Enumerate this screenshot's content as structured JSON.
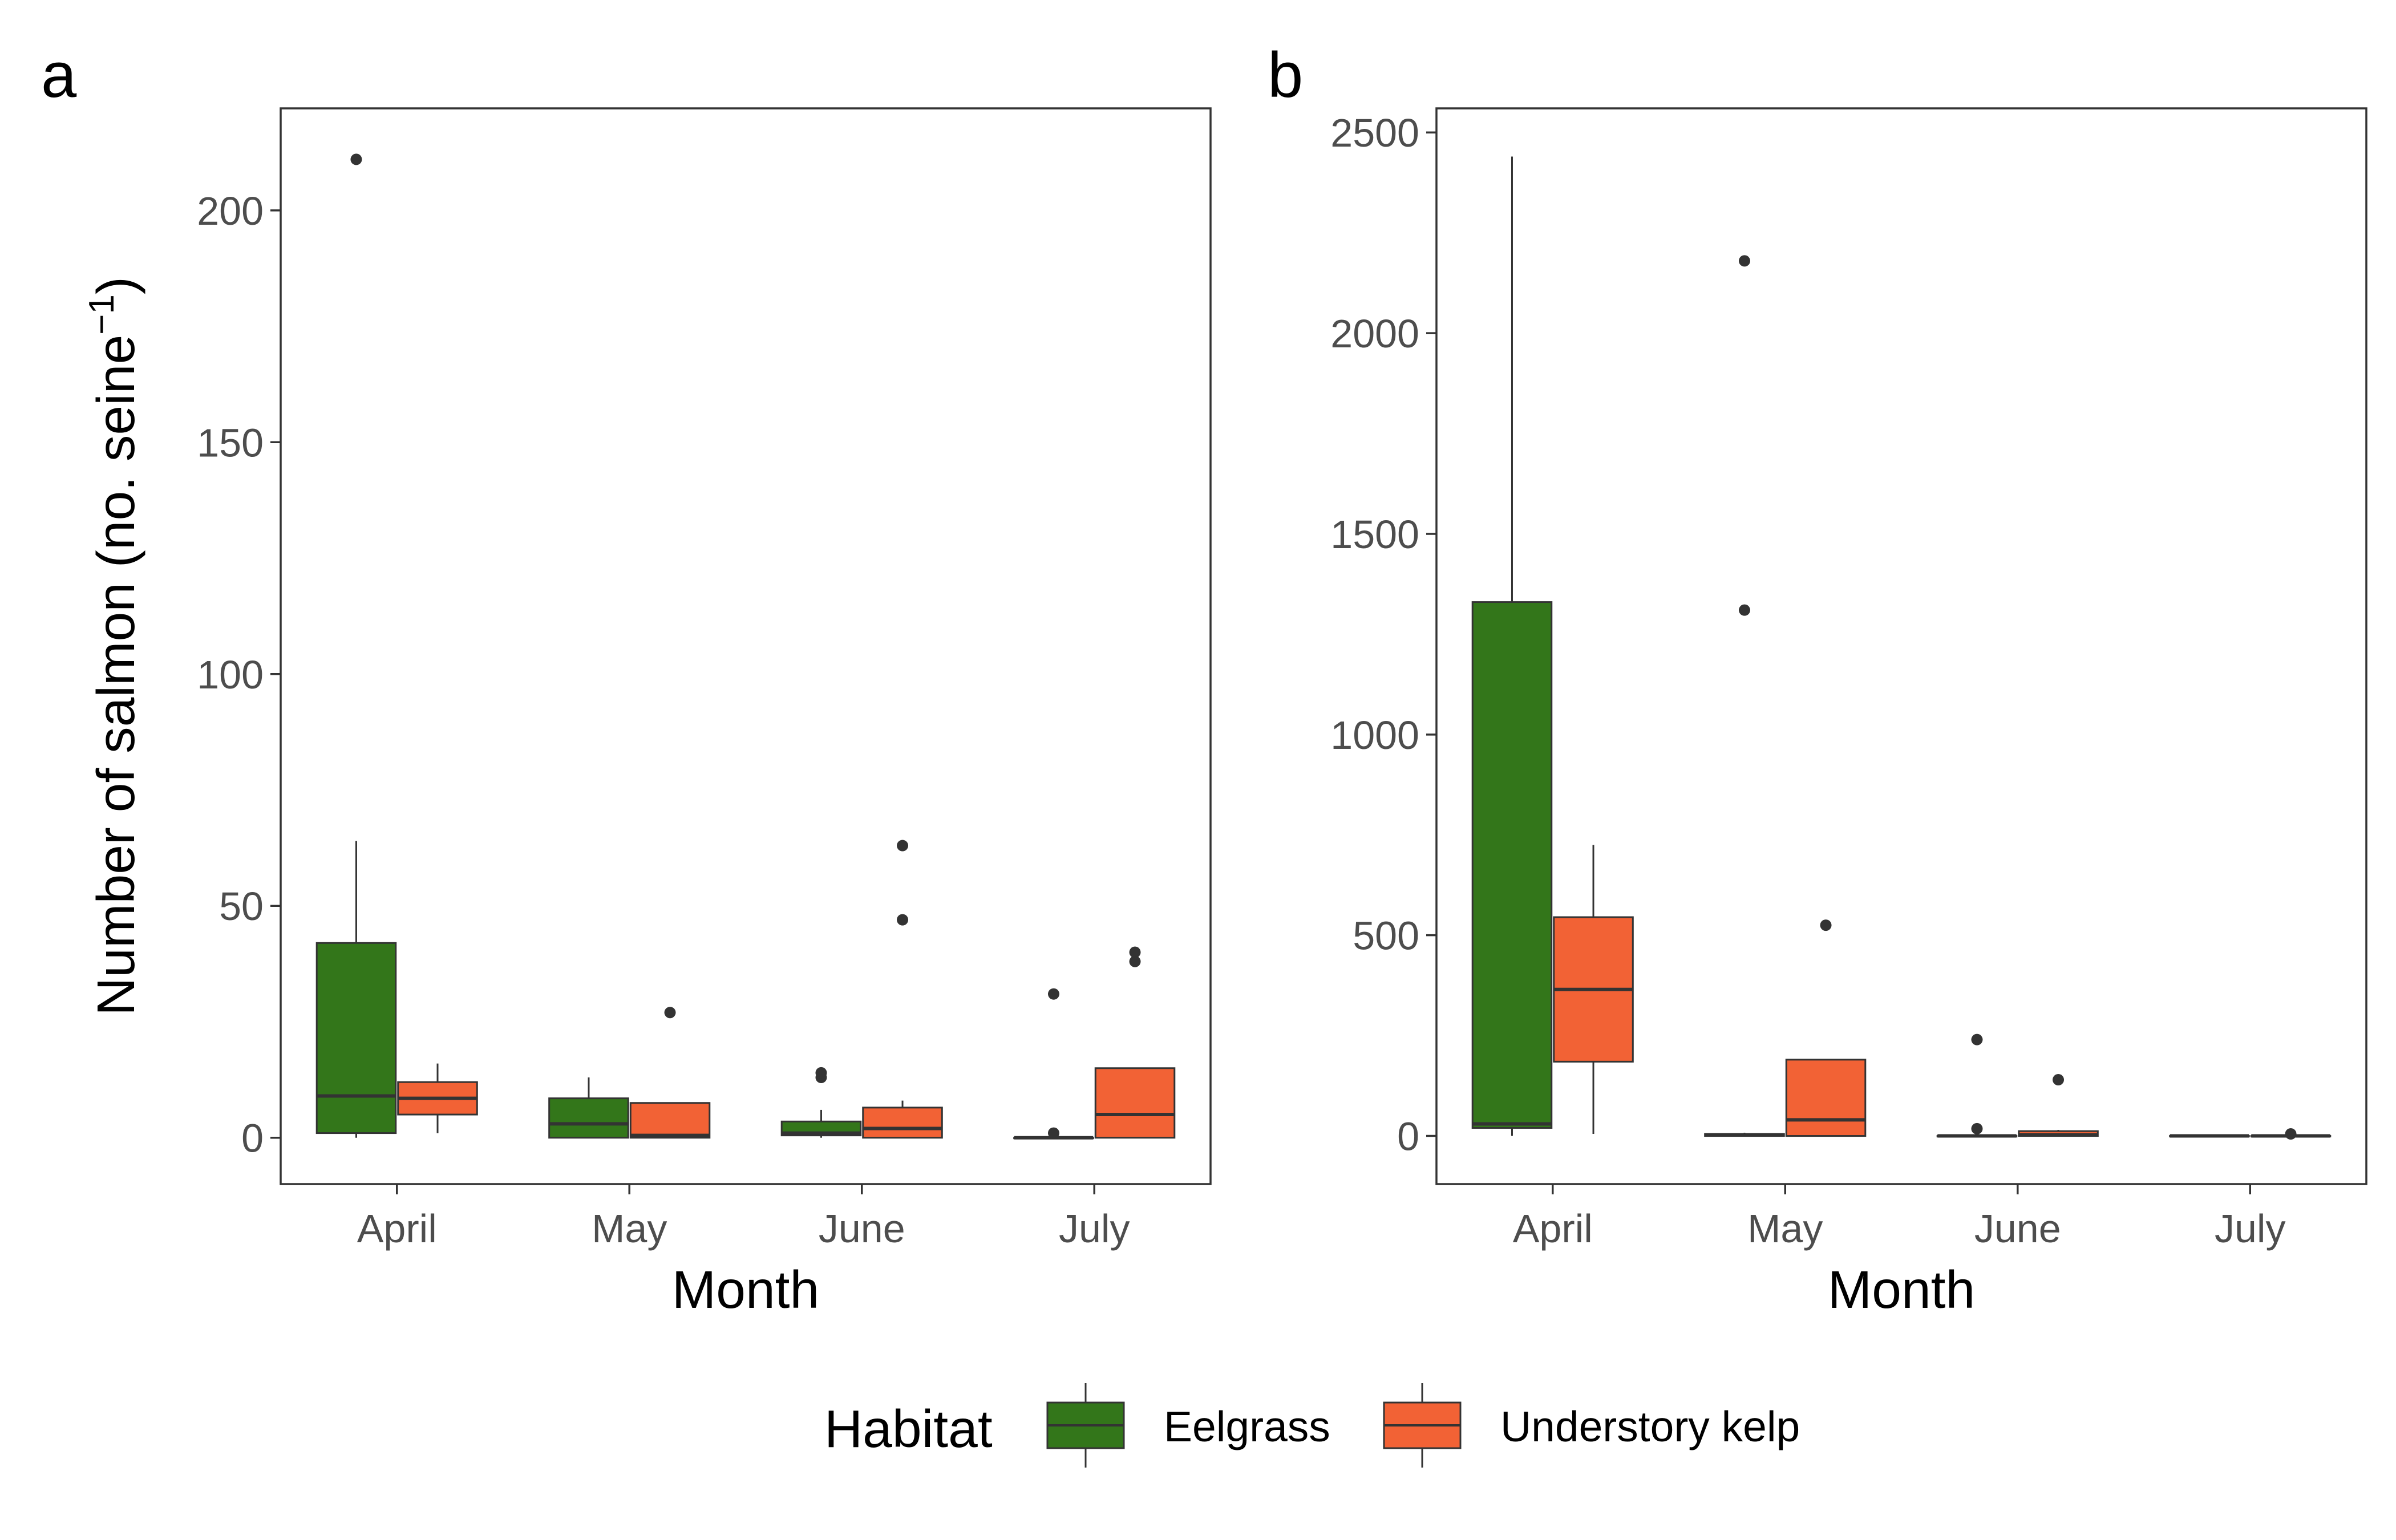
{
  "chart_data": [
    {
      "type": "box",
      "panel_label": "a",
      "categories": [
        "April",
        "May",
        "June",
        "July"
      ],
      "xlabel": "Month",
      "ylabel": "Number of salmon (no. seine",
      "ylabel_superscript": "−1",
      "ylabel_close": ")",
      "ylim": [
        -10,
        222
      ],
      "yticks": [
        0,
        50,
        100,
        150,
        200
      ],
      "series": [
        {
          "name": "Eelgrass",
          "color": "#33761A",
          "boxes": [
            {
              "min": 0,
              "q1": 1,
              "median": 9,
              "q3": 42,
              "max": 64,
              "outliers": [
                211
              ]
            },
            {
              "min": 0,
              "q1": 0,
              "median": 3,
              "q3": 8.5,
              "max": 13,
              "outliers": []
            },
            {
              "min": 0,
              "q1": 0.5,
              "median": 1,
              "q3": 3.5,
              "max": 6,
              "outliers": [
                13,
                14
              ]
            },
            {
              "min": 0,
              "q1": 0,
              "median": 0,
              "q3": 0,
              "max": 0,
              "outliers": [
                1,
                31
              ]
            }
          ]
        },
        {
          "name": "Understory kelp",
          "color": "#F26235",
          "boxes": [
            {
              "min": 1,
              "q1": 5,
              "median": 8.5,
              "q3": 12,
              "max": 16,
              "outliers": []
            },
            {
              "min": 0,
              "q1": 0,
              "median": 0.5,
              "q3": 7.5,
              "max": 7.5,
              "outliers": [
                27
              ]
            },
            {
              "min": 0,
              "q1": 0,
              "median": 2,
              "q3": 6.5,
              "max": 8,
              "outliers": [
                47,
                63
              ]
            },
            {
              "min": 0,
              "q1": 0,
              "median": 5,
              "q3": 15,
              "max": 15,
              "outliers": [
                38,
                40
              ]
            }
          ]
        }
      ]
    },
    {
      "type": "box",
      "panel_label": "b",
      "categories": [
        "April",
        "May",
        "June",
        "July"
      ],
      "xlabel": "Month",
      "ylabel": "",
      "ylim": [
        -120,
        2560
      ],
      "yticks": [
        0,
        500,
        1000,
        1500,
        2000,
        2500
      ],
      "series": [
        {
          "name": "Eelgrass",
          "color": "#33761A",
          "boxes": [
            {
              "min": 0,
              "q1": 20,
              "median": 30,
              "q3": 1330,
              "max": 2440,
              "outliers": []
            },
            {
              "min": 0,
              "q1": 0,
              "median": 3,
              "q3": 5,
              "max": 8,
              "outliers": [
                1310,
                2180
              ]
            },
            {
              "min": 0,
              "q1": 0,
              "median": 0,
              "q3": 0,
              "max": 0,
              "outliers": [
                18,
                240
              ]
            },
            {
              "min": 0,
              "q1": 0,
              "median": 0,
              "q3": 0,
              "max": 0,
              "outliers": []
            }
          ]
        },
        {
          "name": "Understory kelp",
          "color": "#F26235",
          "boxes": [
            {
              "min": 5,
              "q1": 185,
              "median": 365,
              "q3": 545,
              "max": 725,
              "outliers": []
            },
            {
              "min": 0,
              "q1": 0,
              "median": 40,
              "q3": 190,
              "max": 190,
              "outliers": [
                525
              ]
            },
            {
              "min": 0,
              "q1": 0,
              "median": 3,
              "q3": 12,
              "max": 15,
              "outliers": [
                140
              ]
            },
            {
              "min": 0,
              "q1": 0,
              "median": 0,
              "q3": 0,
              "max": 0,
              "outliers": [
                5
              ]
            }
          ]
        }
      ]
    }
  ],
  "legend": {
    "title": "Habitat",
    "items": [
      {
        "label": "Eelgrass",
        "color": "#33761A"
      },
      {
        "label": "Understory kelp",
        "color": "#F26235"
      }
    ],
    "position": "bottom"
  }
}
